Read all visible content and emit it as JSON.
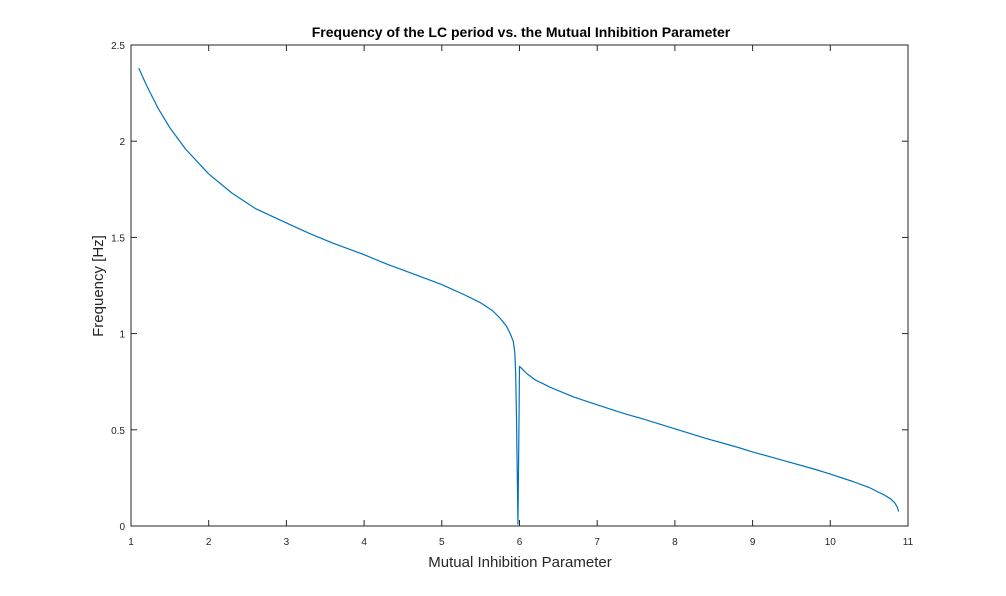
{
  "chart_data": {
    "type": "line",
    "title": "Frequency of the LC period vs. the Mutual Inhibition Parameter",
    "xlabel": "Mutual Inhibition Parameter",
    "ylabel": "Frequency [Hz]",
    "xlim": [
      1,
      11
    ],
    "ylim": [
      0,
      2.5
    ],
    "xticks": [
      1,
      2,
      3,
      4,
      5,
      6,
      7,
      8,
      9,
      10,
      11
    ],
    "yticks": [
      0,
      0.5,
      1,
      1.5,
      2,
      2.5
    ],
    "xtick_labels": [
      "1",
      "2",
      "3",
      "4",
      "5",
      "6",
      "7",
      "8",
      "9",
      "10",
      "11"
    ],
    "ytick_labels": [
      "0",
      "0.5",
      "1",
      "1.5",
      "2",
      "2.5"
    ],
    "grid": false,
    "box": true,
    "series": [
      {
        "color": "#0072BD",
        "x": [
          1.1,
          1.2,
          1.35,
          1.5,
          1.7,
          2.0,
          2.3,
          2.6,
          3.0,
          3.3,
          3.6,
          4.0,
          4.3,
          4.6,
          5.0,
          5.3,
          5.5,
          5.65,
          5.75,
          5.83,
          5.88,
          5.92,
          5.94,
          5.95,
          5.96,
          5.97,
          5.98,
          5.99,
          6.0,
          6.05,
          6.1,
          6.2,
          6.4,
          6.7,
          7.0,
          7.3,
          7.6,
          8.0,
          8.4,
          8.8,
          9.0,
          9.4,
          9.8,
          10.0,
          10.3,
          10.5,
          10.6,
          10.7,
          10.78,
          10.83,
          10.86,
          10.88
        ],
        "y": [
          2.38,
          2.29,
          2.17,
          2.07,
          1.96,
          1.83,
          1.73,
          1.65,
          1.575,
          1.52,
          1.47,
          1.41,
          1.36,
          1.315,
          1.255,
          1.2,
          1.16,
          1.12,
          1.08,
          1.04,
          1.0,
          0.96,
          0.9,
          0.8,
          0.6,
          0.3,
          0.01,
          0.4,
          0.83,
          0.81,
          0.79,
          0.76,
          0.72,
          0.67,
          0.63,
          0.59,
          0.555,
          0.505,
          0.455,
          0.41,
          0.385,
          0.34,
          0.295,
          0.27,
          0.23,
          0.2,
          0.18,
          0.16,
          0.14,
          0.12,
          0.1,
          0.075
        ]
      }
    ]
  }
}
